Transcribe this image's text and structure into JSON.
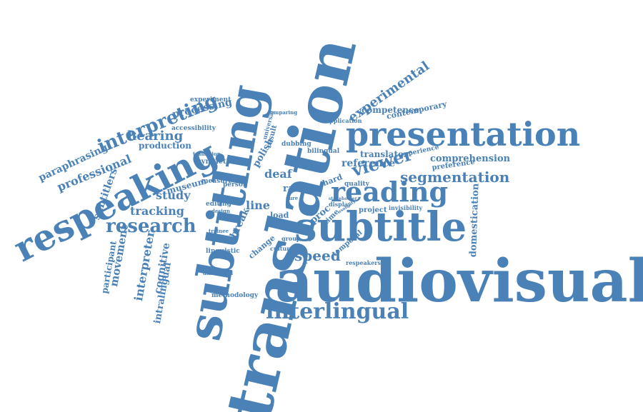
{
  "colors": {
    "ink": "#4a81b6",
    "background": "#ffffff"
  },
  "words": [
    "translation",
    "subtitling",
    "audiovisual",
    "subtitle",
    "presentation",
    "respeaking",
    "reading",
    "interlingual",
    "interpreting",
    "research",
    "viewer",
    "segmentation",
    "experimental",
    "hearing",
    "speed",
    "professional",
    "paraphrasing",
    "subtitlers",
    "study",
    "tracking",
    "movement",
    "participant",
    "interpreter",
    "cognitive",
    "intralingual",
    "domestication",
    "comprehension",
    "translator",
    "reference",
    "competence",
    "contemporary",
    "deaf",
    "line",
    "break",
    "rate",
    "production",
    "processing",
    "accessibility",
    "experiment",
    "museum",
    "polish",
    "syntactic",
    "measure",
    "person",
    "editing",
    "load",
    "proc",
    "time",
    "project",
    "invisibility",
    "quality",
    "hard",
    "preference",
    "experience",
    "application",
    "bilingual",
    "dubbing",
    "comparing",
    "change",
    "cultural",
    "group",
    "temporal",
    "respeakers",
    "methodology",
    "linguistic",
    "animated",
    "trainee",
    "transition",
    "design",
    "result",
    "universal",
    "sure",
    "display",
    "stakeholder",
    "usability"
  ]
}
